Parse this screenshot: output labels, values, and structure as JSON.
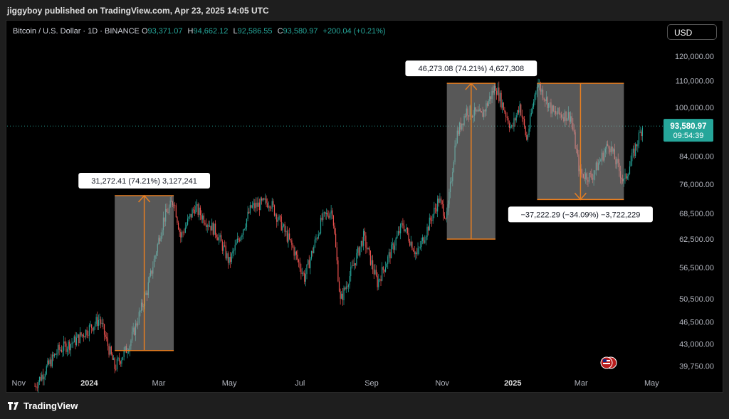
{
  "header": {
    "publisher": "jiggyboy published on TradingView.com, Apr 23, 2025 14:05 UTC"
  },
  "legend": {
    "symbol": "Bitcoin / U.S. Dollar · 1D · BINANCE",
    "o_label": "O",
    "o": "93,371.07",
    "h_label": "H",
    "h": "94,662.12",
    "l_label": "L",
    "l": "92,586.55",
    "c_label": "C",
    "c": "93,580.97",
    "change": "+200.04 (+0.21%)"
  },
  "currency": "USD",
  "footer": {
    "brand": "TradingView"
  },
  "colors": {
    "up": "#26a69a",
    "down": "#ef5350",
    "annotation": "#e67e22",
    "price_tag": "#26a69a"
  },
  "chart_data": {
    "type": "candlestick",
    "y_scale": "log",
    "ylim": [
      38500,
      126000
    ],
    "x_range": [
      "2023-10-22",
      "2025-05-10"
    ],
    "y_ticks": [
      {
        "value": 120000,
        "label": "120,000.00"
      },
      {
        "value": 110000,
        "label": "110,000.00"
      },
      {
        "value": 100000,
        "label": "100,000.00"
      },
      {
        "value": 84000,
        "label": "84,000.00"
      },
      {
        "value": 76000,
        "label": "76,000.00"
      },
      {
        "value": 68500,
        "label": "68,500.00"
      },
      {
        "value": 62500,
        "label": "62,500.00"
      },
      {
        "value": 56500,
        "label": "56,500.00"
      },
      {
        "value": 50500,
        "label": "50,500.00"
      },
      {
        "value": 46500,
        "label": "46,500.00"
      },
      {
        "value": 43000,
        "label": "43,000.00"
      },
      {
        "value": 39750,
        "label": "39,750.00"
      }
    ],
    "x_ticks": [
      {
        "date": "2023-11-01",
        "label": "Nov",
        "bold": false
      },
      {
        "date": "2024-01-01",
        "label": "2024",
        "bold": true
      },
      {
        "date": "2024-03-01",
        "label": "Mar",
        "bold": false
      },
      {
        "date": "2024-05-01",
        "label": "May",
        "bold": false
      },
      {
        "date": "2024-07-01",
        "label": "Jul",
        "bold": false
      },
      {
        "date": "2024-09-01",
        "label": "Sep",
        "bold": false
      },
      {
        "date": "2024-11-01",
        "label": "Nov",
        "bold": false
      },
      {
        "date": "2025-01-01",
        "label": "2025",
        "bold": true
      },
      {
        "date": "2025-03-01",
        "label": "Mar",
        "bold": false
      },
      {
        "date": "2025-05-01",
        "label": "May",
        "bold": false
      }
    ],
    "price_path": [
      [
        "2023-11-15",
        37000
      ],
      [
        "2023-12-05",
        42000
      ],
      [
        "2023-12-20",
        43500
      ],
      [
        "2024-01-10",
        47000
      ],
      [
        "2024-01-23",
        39500
      ],
      [
        "2024-02-05",
        43000
      ],
      [
        "2024-02-20",
        52000
      ],
      [
        "2024-03-05",
        67000
      ],
      [
        "2024-03-14",
        72000
      ],
      [
        "2024-03-20",
        63000
      ],
      [
        "2024-04-01",
        70000
      ],
      [
        "2024-04-20",
        64000
      ],
      [
        "2024-05-01",
        57500
      ],
      [
        "2024-05-20",
        70000
      ],
      [
        "2024-06-05",
        71500
      ],
      [
        "2024-06-25",
        60500
      ],
      [
        "2024-07-05",
        54500
      ],
      [
        "2024-07-20",
        67000
      ],
      [
        "2024-07-29",
        69500
      ],
      [
        "2024-08-05",
        50000
      ],
      [
        "2024-08-25",
        63000
      ],
      [
        "2024-09-06",
        53500
      ],
      [
        "2024-09-28",
        66000
      ],
      [
        "2024-10-10",
        59000
      ],
      [
        "2024-10-29",
        72000
      ],
      [
        "2024-11-05",
        67500
      ],
      [
        "2024-11-13",
        90000
      ],
      [
        "2024-11-22",
        99000
      ],
      [
        "2024-12-05",
        97000
      ],
      [
        "2024-12-17",
        108000
      ],
      [
        "2024-12-31",
        92500
      ],
      [
        "2025-01-07",
        101000
      ],
      [
        "2025-01-13",
        89000
      ],
      [
        "2025-01-22",
        109500
      ],
      [
        "2025-02-05",
        98000
      ],
      [
        "2025-02-20",
        97000
      ],
      [
        "2025-02-28",
        79000
      ],
      [
        "2025-03-10",
        78000
      ],
      [
        "2025-03-25",
        88000
      ],
      [
        "2025-04-07",
        76500
      ],
      [
        "2025-04-15",
        84500
      ],
      [
        "2025-04-23",
        93580
      ]
    ],
    "last_price": {
      "value": 93580.97,
      "label": "93,580.97",
      "countdown": "09:54:39"
    },
    "measures": [
      {
        "start": "2024-01-23",
        "end": "2024-03-14",
        "from": 42000,
        "to": 73000,
        "direction": "up",
        "label": "31,272.41 (74.21%) 3,127,241",
        "label_position": "above"
      },
      {
        "start": "2024-11-05",
        "end": "2024-12-17",
        "from": 62500,
        "to": 109000,
        "direction": "up",
        "label": "46,273.08 (74.21%) 4,627,308",
        "label_position": "above"
      },
      {
        "start": "2025-01-22",
        "end": "2025-04-07",
        "from": 109000,
        "to": 72000,
        "direction": "down",
        "label": "−37,222.29 (−34.09%) −3,722,229",
        "label_position": "below"
      }
    ]
  }
}
